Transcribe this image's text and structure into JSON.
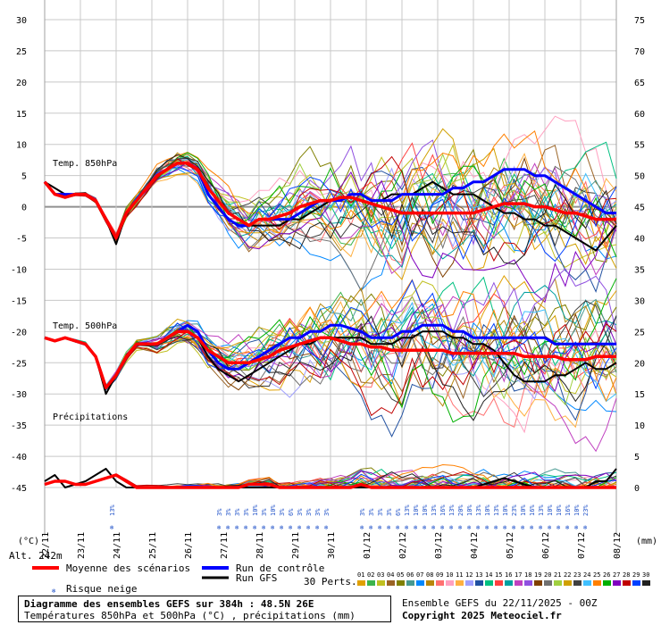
{
  "chart_data": {
    "type": "line",
    "title": "Diagramme des ensembles GEFS sur 384h : 48.5N 26E",
    "subtitle": "Températures 850hPa et 500hPa (°C) , précipitations (mm)",
    "left_axis": {
      "unit_label": "(°C)",
      "ticks": [
        30,
        25,
        20,
        15,
        10,
        5,
        0,
        -5,
        -10,
        -15,
        -20,
        -25,
        -30,
        -35,
        -40,
        -45
      ],
      "range": [
        -45,
        30
      ]
    },
    "right_axis": {
      "unit_label": "(mm)",
      "ticks": [
        75,
        70,
        65,
        60,
        55,
        50,
        45,
        40,
        35,
        30,
        25,
        20,
        15,
        10,
        5,
        0
      ],
      "range": [
        0,
        75
      ]
    },
    "x_ticks": [
      "22/11",
      "23/11",
      "24/11",
      "25/11",
      "26/11",
      "27/11",
      "28/11",
      "29/11",
      "30/11",
      "01/12",
      "02/12",
      "03/12",
      "04/12",
      "05/12",
      "06/12",
      "07/12",
      "08/12"
    ],
    "altitude": "Alt. 242m",
    "panels": [
      {
        "label": "Temp. 850hPa",
        "axis": "left",
        "series": [
          {
            "name": "Moyenne des scénarios",
            "color": "#ff0000",
            "values": [
              4,
              2,
              1.5,
              2,
              2,
              1,
              -2,
              -5,
              -1,
              1,
              3,
              5,
              6,
              7,
              7,
              6,
              3,
              1,
              -1,
              -2,
              -3,
              -2,
              -2,
              -1.5,
              -1,
              0,
              0.5,
              1,
              1,
              1.5,
              1.5,
              1,
              0.5,
              0,
              -0.5,
              -1,
              -1,
              -1,
              -1,
              -1,
              -1,
              -1,
              -1,
              -0.5,
              0,
              0.5,
              0.5,
              0.5,
              0,
              0,
              -0.5,
              -1,
              -1,
              -1.5,
              -2,
              -2,
              -2
            ]
          },
          {
            "name": "Run de contrôle",
            "color": "#0000ff",
            "values": [
              4,
              2,
              2,
              2,
              2,
              1,
              -2,
              -5,
              -1,
              1,
              3,
              5,
              6,
              7,
              7,
              6,
              2,
              0,
              -2,
              -3,
              -3,
              -2,
              -2,
              -2,
              -2,
              -1,
              0,
              1,
              1,
              1,
              2,
              2,
              1,
              1,
              1,
              2,
              2,
              2,
              2,
              2,
              3,
              3,
              4,
              4,
              5,
              6,
              6,
              6,
              5,
              5,
              4,
              3,
              2,
              1,
              0,
              -1,
              -1
            ]
          },
          {
            "name": "Run GFS",
            "color": "#000000",
            "values": [
              4,
              3,
              2,
              2,
              2,
              1,
              -2,
              -6,
              -1,
              1,
              3,
              5,
              6,
              7,
              7,
              6,
              2,
              0,
              -2,
              -3,
              -3,
              -3,
              -3,
              -3,
              -2,
              -2,
              -1,
              0,
              1,
              1,
              2,
              2,
              1,
              1,
              2,
              2,
              2,
              3,
              4,
              3,
              2,
              2,
              2,
              1,
              0,
              -1,
              -1,
              -2,
              -2,
              -3,
              -3,
              -4,
              -5,
              -6,
              -7,
              -5,
              -3
            ]
          }
        ]
      },
      {
        "label": "Temp. 500hPa",
        "axis": "left",
        "series": [
          {
            "name": "Moyenne des scénarios",
            "color": "#ff0000",
            "values": [
              -21,
              -21.5,
              -21,
              -21.5,
              -22,
              -24,
              -29,
              -27,
              -24,
              -22,
              -22,
              -22,
              -21,
              -20,
              -20,
              -21,
              -23,
              -24,
              -25,
              -25,
              -25,
              -24.5,
              -24,
              -23,
              -22.5,
              -22,
              -21.5,
              -21,
              -21,
              -21.5,
              -22,
              -22,
              -22.5,
              -22.5,
              -23,
              -23,
              -23,
              -23,
              -23,
              -23,
              -23.5,
              -23.5,
              -23.5,
              -23.5,
              -23.5,
              -23.5,
              -23.5,
              -24,
              -24,
              -24,
              -24,
              -24.5,
              -24.5,
              -24.5,
              -24,
              -24,
              -24
            ]
          },
          {
            "name": "Run de contrôle",
            "color": "#0000ff",
            "values": [
              -21,
              -21.5,
              -21,
              -21.5,
              -22,
              -24,
              -29,
              -27,
              -24,
              -22,
              -22,
              -22,
              -21,
              -20,
              -19,
              -20,
              -23,
              -25,
              -26,
              -26,
              -25,
              -24,
              -23,
              -22,
              -21,
              -21,
              -20,
              -20,
              -19,
              -19,
              -19.5,
              -20,
              -21,
              -21,
              -21,
              -20,
              -20,
              -19,
              -19,
              -19,
              -20,
              -20,
              -21,
              -21,
              -21,
              -21,
              -21,
              -21,
              -21,
              -21,
              -22,
              -22,
              -22,
              -22,
              -22,
              -22,
              -22
            ]
          },
          {
            "name": "Run GFS",
            "color": "#000000",
            "values": [
              -21,
              -21.5,
              -21,
              -21.5,
              -22,
              -24,
              -30,
              -27,
              -24,
              -22,
              -22,
              -22,
              -21,
              -20,
              -20,
              -21,
              -24,
              -26,
              -27,
              -28,
              -27,
              -26,
              -25,
              -24,
              -23,
              -22,
              -22,
              -21,
              -21,
              -21,
              -21,
              -21,
              -22,
              -22,
              -22,
              -21,
              -21,
              -20,
              -20,
              -20,
              -21,
              -21,
              -22,
              -22,
              -23,
              -25,
              -27,
              -28,
              -28,
              -28,
              -27,
              -27,
              -26,
              -25,
              -26,
              -26,
              -25
            ]
          }
        ]
      },
      {
        "label": "Précipitations",
        "axis": "right",
        "series": [
          {
            "name": "Moyenne des scénarios",
            "color": "#ff0000",
            "values": [
              0.5,
              1,
              1,
              0.5,
              0.5,
              1,
              1.5,
              2,
              1,
              0,
              0,
              0,
              0,
              0,
              0,
              0,
              0,
              0,
              0,
              0,
              0.5,
              0.5,
              0.5,
              0,
              0,
              0,
              0,
              0,
              0,
              0,
              0,
              0.5,
              0,
              0,
              0,
              0,
              0,
              0,
              0,
              0,
              0,
              0,
              0,
              0,
              0,
              0,
              0,
              0,
              0,
              0,
              0,
              0,
              0,
              0,
              0,
              0,
              0
            ]
          },
          {
            "name": "Run GFS",
            "color": "#000000",
            "values": [
              1,
              2,
              0,
              0.5,
              1,
              2,
              3,
              1,
              0,
              0,
              0,
              0,
              0,
              0,
              0,
              0,
              0,
              0,
              0,
              0,
              0,
              0,
              0,
              0,
              0,
              0,
              0,
              0,
              0,
              0,
              0,
              0,
              0,
              0,
              0,
              0,
              0,
              0,
              0,
              0,
              0,
              0,
              0,
              0.5,
              1,
              1.5,
              1,
              0.5,
              0,
              0,
              0,
              0,
              0,
              0,
              1,
              1,
              3
            ]
          }
        ]
      }
    ],
    "snow_risk": [
      {
        "date_index": 7.5,
        "pct": "13%"
      },
      {
        "date_index": 19.5,
        "pct": "3%"
      },
      {
        "date_index": 20.5,
        "pct": "3%"
      },
      {
        "date_index": 21.5,
        "pct": "3%"
      },
      {
        "date_index": 22.5,
        "pct": "3%"
      },
      {
        "date_index": 23.5,
        "pct": "10%"
      },
      {
        "date_index": 24.5,
        "pct": "3%"
      },
      {
        "date_index": 25.5,
        "pct": "10%"
      },
      {
        "date_index": 26.5,
        "pct": "3%"
      },
      {
        "date_index": 27.5,
        "pct": "6%"
      },
      {
        "date_index": 28.5,
        "pct": "3%"
      },
      {
        "date_index": 29.5,
        "pct": "3%"
      },
      {
        "date_index": 30.5,
        "pct": "3%"
      },
      {
        "date_index": 31.5,
        "pct": "3%"
      },
      {
        "date_index": 35.5,
        "pct": "3%"
      },
      {
        "date_index": 36.5,
        "pct": "3%"
      },
      {
        "date_index": 37.5,
        "pct": "3%"
      },
      {
        "date_index": 38.5,
        "pct": "3%"
      },
      {
        "date_index": 39.5,
        "pct": "6%"
      },
      {
        "date_index": 40.5,
        "pct": "13%"
      },
      {
        "date_index": 41.5,
        "pct": "10%"
      },
      {
        "date_index": 42.5,
        "pct": "10%"
      },
      {
        "date_index": 43.5,
        "pct": "13%"
      },
      {
        "date_index": 44.5,
        "pct": "16%"
      },
      {
        "date_index": 45.5,
        "pct": "13%"
      },
      {
        "date_index": 46.5,
        "pct": "20%"
      },
      {
        "date_index": 47.5,
        "pct": "10%"
      },
      {
        "date_index": 48.5,
        "pct": "13%"
      },
      {
        "date_index": 49.5,
        "pct": "10%"
      },
      {
        "date_index": 50.5,
        "pct": "13%"
      },
      {
        "date_index": 51.5,
        "pct": "10%"
      },
      {
        "date_index": 52.5,
        "pct": "23%"
      },
      {
        "date_index": 53.5,
        "pct": "10%"
      },
      {
        "date_index": 54.5,
        "pct": "16%"
      },
      {
        "date_index": 55.5,
        "pct": "13%"
      },
      {
        "date_index": 56.5,
        "pct": "10%"
      },
      {
        "date_index": 57.5,
        "pct": "10%"
      },
      {
        "date_index": 58.5,
        "pct": "16%"
      },
      {
        "date_index": 59.5,
        "pct": "10%"
      },
      {
        "date_index": 60.5,
        "pct": "23%"
      }
    ],
    "perturbations": {
      "label": "30 Perts.",
      "ids": [
        "01",
        "02",
        "03",
        "04",
        "05",
        "06",
        "07",
        "08",
        "09",
        "10",
        "11",
        "12",
        "13",
        "14",
        "15",
        "16",
        "17",
        "18",
        "19",
        "20",
        "21",
        "22",
        "23",
        "24",
        "25",
        "26",
        "27",
        "28",
        "29",
        "30"
      ],
      "colors": [
        "#e0a000",
        "#3cb44b",
        "#c0c020",
        "#9a6324",
        "#808000",
        "#469990",
        "#0088ff",
        "#b8860b",
        "#ff7070",
        "#ffa0c0",
        "#ffb040",
        "#a0a0ff",
        "#2050a0",
        "#00c080",
        "#ff4040",
        "#00a0a0",
        "#c040c0",
        "#9050e0",
        "#804000",
        "#707070",
        "#a0d040",
        "#d0a000",
        "#404040",
        "#40c0ff",
        "#ff8000",
        "#00b000",
        "#8000c0",
        "#c00000",
        "#0040ff",
        "#202020"
      ]
    }
  },
  "legend": {
    "mean": "Moyenne des scénarios",
    "control": "Run de contrôle",
    "gfs": "Run GFS",
    "snow": "Risque neige"
  },
  "footer": {
    "title": "Diagramme des ensembles GEFS sur 384h : 48.5N 26E",
    "subtitle": "Températures 850hPa et 500hPa (°C) , précipitations (mm)",
    "run": "Ensemble GEFS du 22/11/2025 - 00Z",
    "copyright": "Copyright 2025 Meteociel.fr"
  }
}
